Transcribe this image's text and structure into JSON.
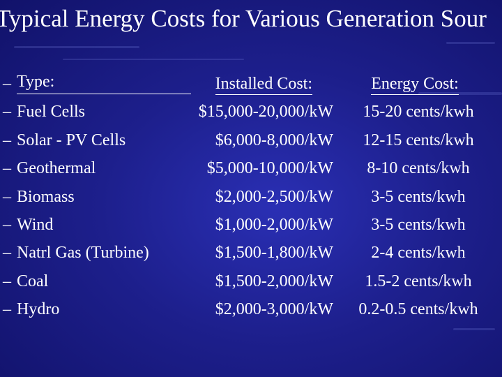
{
  "title": "Typical Energy Costs for Various Generation Sour",
  "bullet": "–",
  "headers": {
    "type": "Type:",
    "installed": "Installed Cost:",
    "energy": "Energy Cost:"
  },
  "rows": [
    {
      "type": "Fuel Cells",
      "installed": "$15,000-20,000/kW",
      "energy": "15-20 cents/kwh"
    },
    {
      "type": "Solar - PV Cells",
      "installed": "$6,000-8,000/kW",
      "energy": "12-15 cents/kwh"
    },
    {
      "type": "Geothermal",
      "installed": "$5,000-10,000/kW",
      "energy": "8-10 cents/kwh"
    },
    {
      "type": "Biomass",
      "installed": "$2,000-2,500/kW",
      "energy": "3-5 cents/kwh"
    },
    {
      "type": "Wind",
      "installed": "$1,000-2,000/kW",
      "energy": "3-5 cents/kwh"
    },
    {
      "type": "Natrl Gas (Turbine)",
      "installed": "$1,500-1,800/kW",
      "energy": "2-4 cents/kwh"
    },
    {
      "type": "Coal",
      "installed": "$1,500-2,000/kW",
      "energy": "1.5-2 cents/kwh"
    },
    {
      "type": "Hydro",
      "installed": "$2,000-3,000/kW",
      "energy": "0.2-0.5 cents/kwh"
    }
  ],
  "colors": {
    "background": "#1d1f8c",
    "text": "#ffffff"
  }
}
